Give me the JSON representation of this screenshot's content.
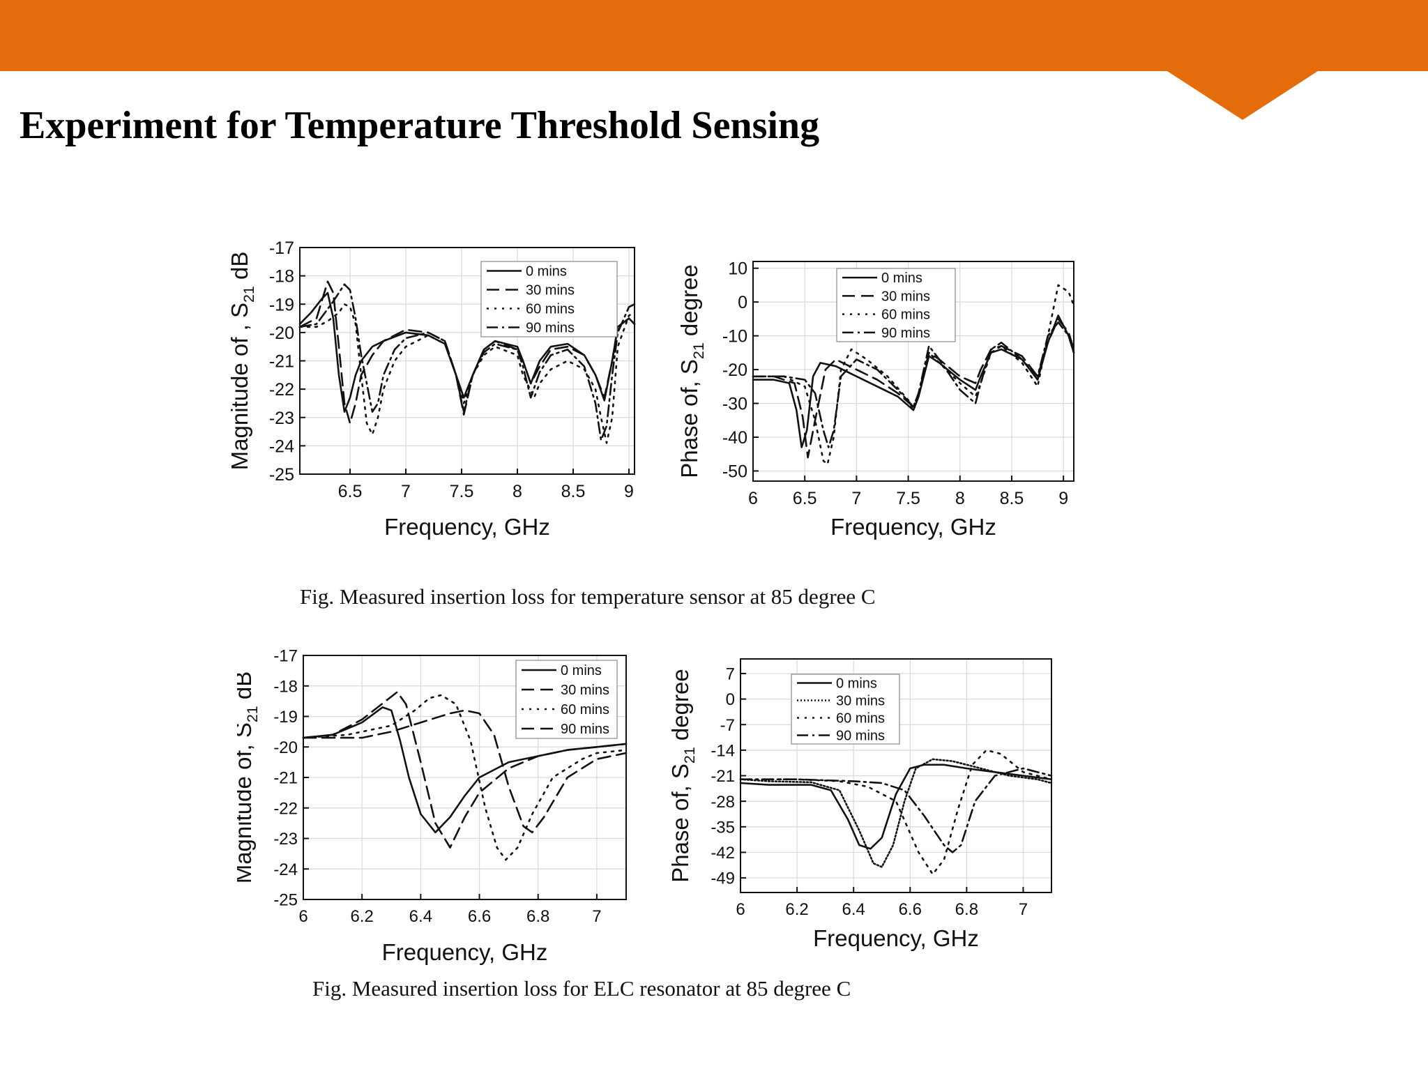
{
  "slide": {
    "title": "Experiment for Temperature  Threshold Sensing",
    "caption_top": "Fig. Measured insertion loss for temperature sensor at 85 degree C",
    "caption_bottom": "Fig. Measured insertion loss for ELC resonator at 85 degree C",
    "accent_color": "#E46C0A"
  },
  "chart_data": [
    {
      "id": "top-magnitude",
      "type": "line",
      "xlabel": "Frequency, GHz",
      "ylabel_main": "Magnitude of , S",
      "ylabel_sub": "21",
      "ylabel_tail": " dB",
      "xlim": [
        6.05,
        9.05
      ],
      "ylim": [
        -25,
        -17
      ],
      "xticks": [
        6.5,
        7.0,
        7.5,
        8.0,
        8.5,
        9.0
      ],
      "yticks": [
        -25,
        -24,
        -23,
        -22,
        -21,
        -20,
        -19,
        -18,
        -17
      ],
      "grid": true,
      "legend_position": "top-right",
      "series": [
        {
          "name": "0 mins",
          "style": "solid",
          "x": [
            6.05,
            6.15,
            6.25,
            6.3,
            6.35,
            6.4,
            6.45,
            6.5,
            6.55,
            6.6,
            6.7,
            6.8,
            7.0,
            7.2,
            7.35,
            7.45,
            7.52,
            7.6,
            7.7,
            7.8,
            8.0,
            8.05,
            8.12,
            8.2,
            8.3,
            8.45,
            8.6,
            8.7,
            8.78,
            8.85,
            8.9,
            9.0,
            9.05
          ],
          "y": [
            -19.7,
            -19.3,
            -18.8,
            -18.6,
            -19.5,
            -21.5,
            -22.8,
            -22.3,
            -21.5,
            -21.0,
            -20.5,
            -20.3,
            -20.0,
            -20.1,
            -20.4,
            -21.5,
            -22.3,
            -21.5,
            -20.6,
            -20.3,
            -20.5,
            -21.0,
            -21.8,
            -21.0,
            -20.5,
            -20.4,
            -20.8,
            -21.5,
            -22.4,
            -21.0,
            -19.8,
            -19.5,
            -19.7
          ]
        },
        {
          "name": "30 mins",
          "style": "dashed",
          "x": [
            6.05,
            6.2,
            6.3,
            6.35,
            6.4,
            6.45,
            6.5,
            6.55,
            6.6,
            6.7,
            6.8,
            7.0,
            7.2,
            7.35,
            7.45,
            7.52,
            7.6,
            7.7,
            7.8,
            8.0,
            8.05,
            8.12,
            8.2,
            8.3,
            8.45,
            8.6,
            8.7,
            8.78,
            8.85,
            8.9,
            9.0,
            9.05
          ],
          "y": [
            -19.8,
            -19.5,
            -18.2,
            -18.6,
            -20.5,
            -22.5,
            -23.2,
            -22.5,
            -21.5,
            -20.8,
            -20.3,
            -19.9,
            -20.0,
            -20.3,
            -21.5,
            -22.9,
            -21.5,
            -20.6,
            -20.3,
            -20.6,
            -21.0,
            -21.8,
            -21.2,
            -20.6,
            -20.5,
            -20.8,
            -21.5,
            -22.3,
            -21.0,
            -19.8,
            -19.5,
            -19.7
          ]
        },
        {
          "name": "60 mins",
          "style": "dotted",
          "x": [
            6.05,
            6.2,
            6.3,
            6.4,
            6.45,
            6.5,
            6.55,
            6.6,
            6.65,
            6.7,
            6.75,
            6.8,
            6.9,
            7.0,
            7.2,
            7.35,
            7.45,
            7.52,
            7.6,
            7.7,
            7.8,
            8.0,
            8.05,
            8.15,
            8.2,
            8.3,
            8.45,
            8.6,
            8.7,
            8.75,
            8.8,
            8.85,
            8.9,
            9.0,
            9.05
          ],
          "y": [
            -19.8,
            -19.8,
            -19.6,
            -19.3,
            -19.0,
            -19.1,
            -19.7,
            -21.5,
            -23.2,
            -23.6,
            -23.0,
            -22.0,
            -21.0,
            -20.5,
            -20.1,
            -20.4,
            -21.5,
            -22.5,
            -21.5,
            -20.8,
            -20.5,
            -20.8,
            -21.5,
            -22.3,
            -21.8,
            -21.3,
            -21.0,
            -21.3,
            -22.0,
            -23.0,
            -23.9,
            -23.0,
            -20.5,
            -19.4,
            -19.3
          ]
        },
        {
          "name": "90 mins",
          "style": "dashdot",
          "x": [
            6.05,
            6.2,
            6.35,
            6.45,
            6.5,
            6.55,
            6.6,
            6.7,
            6.75,
            6.8,
            6.9,
            7.0,
            7.2,
            7.35,
            7.45,
            7.52,
            7.6,
            7.7,
            7.8,
            8.0,
            8.05,
            8.12,
            8.2,
            8.3,
            8.45,
            8.6,
            8.7,
            8.75,
            8.8,
            8.85,
            8.9,
            9.0,
            9.05
          ],
          "y": [
            -19.8,
            -19.7,
            -18.9,
            -18.3,
            -18.5,
            -19.5,
            -20.8,
            -22.8,
            -22.5,
            -21.5,
            -20.6,
            -20.2,
            -20.0,
            -20.3,
            -21.5,
            -22.8,
            -21.5,
            -20.7,
            -20.4,
            -20.6,
            -21.2,
            -22.3,
            -21.4,
            -20.8,
            -20.6,
            -21.2,
            -22.5,
            -23.8,
            -23.3,
            -21.5,
            -20.0,
            -19.1,
            -19.0
          ]
        }
      ]
    },
    {
      "id": "top-phase",
      "type": "line",
      "xlabel": "Frequency, GHz",
      "ylabel_main": "Phase of, S",
      "ylabel_sub": "21",
      "ylabel_tail": "  degree",
      "xlim": [
        6.0,
        9.1
      ],
      "ylim": [
        -53,
        12
      ],
      "xticks": [
        6.0,
        6.5,
        7.0,
        7.5,
        8.0,
        8.5,
        9.0
      ],
      "yticks": [
        -50,
        -40,
        -30,
        -20,
        -10,
        0,
        10
      ],
      "grid": true,
      "legend_position": "top-left",
      "series": [
        {
          "name": "0 mins",
          "style": "solid",
          "x": [
            6.0,
            6.2,
            6.35,
            6.42,
            6.47,
            6.52,
            6.58,
            6.65,
            6.8,
            7.0,
            7.2,
            7.4,
            7.55,
            7.6,
            7.7,
            7.8,
            8.0,
            8.15,
            8.2,
            8.3,
            8.4,
            8.6,
            8.75,
            8.85,
            8.95,
            9.05,
            9.1
          ],
          "y": [
            -23,
            -23,
            -24,
            -32,
            -43,
            -38,
            -22,
            -18,
            -19,
            -22,
            -25,
            -28,
            -32,
            -28,
            -16,
            -18,
            -23,
            -26,
            -22,
            -15,
            -14,
            -17,
            -23,
            -12,
            -4,
            -10,
            -15
          ]
        },
        {
          "name": "30 mins",
          "style": "dashed",
          "x": [
            6.0,
            6.2,
            6.4,
            6.48,
            6.53,
            6.6,
            6.7,
            6.8,
            7.0,
            7.2,
            7.4,
            7.55,
            7.6,
            7.7,
            7.8,
            8.0,
            8.15,
            8.2,
            8.3,
            8.4,
            8.6,
            8.75,
            8.85,
            8.95,
            9.05,
            9.1
          ],
          "y": [
            -22,
            -22,
            -24,
            -34,
            -46,
            -35,
            -20,
            -17,
            -20,
            -23,
            -27,
            -31,
            -27,
            -15,
            -17,
            -22,
            -24,
            -20,
            -14,
            -13,
            -16,
            -22,
            -12,
            -5,
            -9,
            -14
          ]
        },
        {
          "name": "60 mins",
          "style": "dotted",
          "x": [
            6.0,
            6.3,
            6.5,
            6.6,
            6.68,
            6.72,
            6.78,
            6.85,
            6.95,
            7.1,
            7.3,
            7.5,
            7.55,
            7.6,
            7.7,
            7.8,
            8.0,
            8.15,
            8.2,
            8.3,
            8.4,
            8.6,
            8.75,
            8.85,
            8.95,
            9.05,
            9.1
          ],
          "y": [
            -22,
            -22,
            -25,
            -35,
            -47,
            -48,
            -40,
            -20,
            -14,
            -17,
            -22,
            -29,
            -32,
            -28,
            -15,
            -18,
            -24,
            -28,
            -24,
            -15,
            -13,
            -18,
            -25,
            -10,
            5,
            3,
            -1
          ]
        },
        {
          "name": "90 mins",
          "style": "dashdot",
          "x": [
            6.0,
            6.3,
            6.5,
            6.6,
            6.68,
            6.73,
            6.78,
            6.85,
            7.0,
            7.2,
            7.4,
            7.55,
            7.6,
            7.7,
            7.8,
            8.0,
            8.15,
            8.2,
            8.3,
            8.4,
            8.6,
            8.75,
            8.85,
            8.95,
            9.05,
            9.1
          ],
          "y": [
            -22,
            -22,
            -23,
            -27,
            -38,
            -43,
            -38,
            -22,
            -17,
            -20,
            -26,
            -31,
            -27,
            -13,
            -17,
            -26,
            -30,
            -24,
            -14,
            -12,
            -17,
            -22,
            -10,
            -6,
            -10,
            -15
          ]
        }
      ]
    },
    {
      "id": "bottom-magnitude",
      "type": "line",
      "xlabel": "Frequency, GHz",
      "ylabel_main": "Magnitude of, S",
      "ylabel_sub": "21",
      "ylabel_tail": " dB",
      "xlim": [
        6.0,
        7.1
      ],
      "ylim": [
        -25,
        -17
      ],
      "xticks": [
        6.0,
        6.2,
        6.4,
        6.6,
        6.8,
        7.0
      ],
      "yticks": [
        -25,
        -24,
        -23,
        -22,
        -21,
        -20,
        -19,
        -18,
        -17
      ],
      "grid": true,
      "legend_position": "top-right",
      "series": [
        {
          "name": "0 mins",
          "style": "solid",
          "x": [
            6.0,
            6.1,
            6.2,
            6.27,
            6.3,
            6.33,
            6.36,
            6.4,
            6.45,
            6.5,
            6.55,
            6.6,
            6.7,
            6.8,
            6.9,
            7.0,
            7.1
          ],
          "y": [
            -19.7,
            -19.6,
            -19.2,
            -18.7,
            -18.8,
            -19.8,
            -21.0,
            -22.2,
            -22.8,
            -22.3,
            -21.6,
            -21.0,
            -20.5,
            -20.3,
            -20.1,
            -20.0,
            -19.9
          ]
        },
        {
          "name": "30 mins",
          "style": "dashed",
          "x": [
            6.0,
            6.1,
            6.2,
            6.28,
            6.32,
            6.35,
            6.4,
            6.45,
            6.5,
            6.55,
            6.6,
            6.7,
            6.8,
            6.9,
            7.0,
            7.1
          ],
          "y": [
            -19.7,
            -19.6,
            -19.1,
            -18.5,
            -18.2,
            -18.6,
            -20.5,
            -22.5,
            -23.3,
            -22.3,
            -21.5,
            -20.7,
            -20.3,
            -20.1,
            -20.0,
            -19.9
          ]
        },
        {
          "name": "60 mins",
          "style": "dotted",
          "x": [
            6.0,
            6.15,
            6.3,
            6.38,
            6.43,
            6.47,
            6.52,
            6.57,
            6.62,
            6.66,
            6.69,
            6.73,
            6.78,
            6.85,
            6.95,
            7.0,
            7.1
          ],
          "y": [
            -19.7,
            -19.6,
            -19.3,
            -18.8,
            -18.4,
            -18.3,
            -18.6,
            -19.8,
            -22.0,
            -23.3,
            -23.7,
            -23.3,
            -22.2,
            -21.0,
            -20.4,
            -20.2,
            -20.1
          ]
        },
        {
          "name": "90 mins",
          "style": "dashed",
          "x": [
            6.0,
            6.1,
            6.2,
            6.3,
            6.4,
            6.5,
            6.55,
            6.6,
            6.65,
            6.7,
            6.75,
            6.78,
            6.82,
            6.9,
            7.0,
            7.1
          ],
          "y": [
            -19.7,
            -19.7,
            -19.7,
            -19.5,
            -19.2,
            -18.9,
            -18.8,
            -18.9,
            -19.6,
            -21.3,
            -22.6,
            -22.8,
            -22.3,
            -21.0,
            -20.4,
            -20.2
          ]
        }
      ]
    },
    {
      "id": "bottom-phase",
      "type": "line",
      "xlabel": "Frequency, GHz",
      "ylabel_main": "Phase of, S",
      "ylabel_sub": "21",
      "ylabel_tail": " degree",
      "xlim": [
        6.0,
        7.1
      ],
      "ylim": [
        -53,
        11
      ],
      "xticks": [
        6.0,
        6.2,
        6.4,
        6.6,
        6.8,
        7.0
      ],
      "yticks": [
        -49,
        -42,
        -35,
        -28,
        -21,
        -14,
        -7,
        0,
        7
      ],
      "grid": true,
      "legend_position": "top-left",
      "series": [
        {
          "name": "0 mins",
          "style": "solid",
          "x": [
            6.0,
            6.1,
            6.25,
            6.32,
            6.38,
            6.42,
            6.46,
            6.5,
            6.55,
            6.6,
            6.65,
            6.72,
            6.8,
            6.9,
            7.0,
            7.1
          ],
          "y": [
            -23,
            -23.5,
            -23.5,
            -25,
            -33,
            -40,
            -41,
            -38,
            -26,
            -19,
            -18,
            -18,
            -19,
            -20,
            -21,
            -22
          ]
        },
        {
          "name": "30 mins",
          "style": "dotted-fine",
          "x": [
            6.0,
            6.1,
            6.25,
            6.35,
            6.42,
            6.47,
            6.5,
            6.54,
            6.58,
            6.62,
            6.68,
            6.75,
            6.85,
            6.95,
            7.05,
            7.1
          ],
          "y": [
            -22,
            -22.5,
            -22.8,
            -25,
            -36,
            -45,
            -46,
            -40,
            -28,
            -19,
            -16.5,
            -17,
            -19,
            -21,
            -22,
            -23
          ]
        },
        {
          "name": "60 mins",
          "style": "dotted",
          "x": [
            6.0,
            6.2,
            6.35,
            6.45,
            6.55,
            6.63,
            6.68,
            6.72,
            6.77,
            6.82,
            6.87,
            6.92,
            7.0,
            7.1
          ],
          "y": [
            -22,
            -22,
            -22.5,
            -24,
            -28,
            -42,
            -48,
            -44,
            -30,
            -18,
            -14,
            -15,
            -20,
            -22
          ]
        },
        {
          "name": "90 mins",
          "style": "dashdot",
          "x": [
            6.0,
            6.2,
            6.4,
            6.5,
            6.58,
            6.65,
            6.72,
            6.75,
            6.78,
            6.83,
            6.9,
            7.0,
            7.1
          ],
          "y": [
            -22,
            -22,
            -22.5,
            -23,
            -25,
            -32,
            -40,
            -42,
            -40,
            -28,
            -21,
            -19,
            -21
          ]
        }
      ]
    }
  ]
}
